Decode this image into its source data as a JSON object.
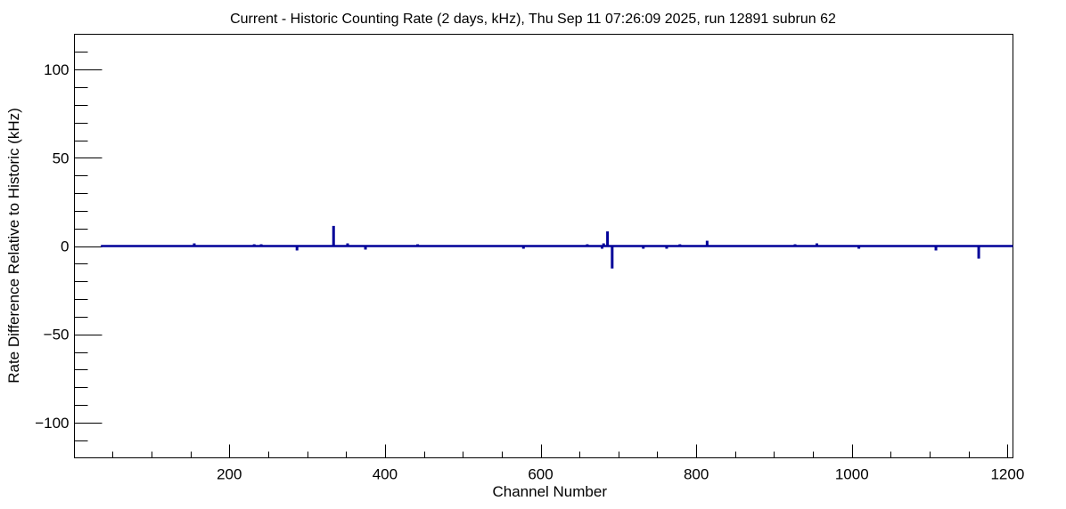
{
  "chart_data": {
    "type": "bar",
    "title": "Current - Historic Counting Rate (2 days, kHz), Thu Sep 11 07:26:09 2025, run 12891 subrun 62",
    "xlabel": "Channel Number",
    "ylabel": "Rate Difference Relative to Historic (kHz)",
    "xlim": [
      1,
      1207
    ],
    "ylim": [
      -120,
      120
    ],
    "x_major_ticks": [
      200,
      400,
      600,
      800,
      1000,
      1200
    ],
    "x_minor_step": 50,
    "y_major_ticks": [
      100,
      50,
      0,
      -50,
      -100
    ],
    "y_minor_step": 10,
    "y_tick_labels": [
      "100",
      "50",
      "0",
      "−50",
      "−100"
    ],
    "x_tick_labels": [
      "200",
      "400",
      "600",
      "800",
      "1000",
      "1200"
    ],
    "grid": false,
    "series_color": "#000099",
    "data_start_channel": 35,
    "default_value": 0,
    "bins": [
      {
        "x": 155,
        "y": 1.0
      },
      {
        "x": 232,
        "y": 0.5
      },
      {
        "x": 241,
        "y": 0.5
      },
      {
        "x": 287,
        "y": -2.0
      },
      {
        "x": 334,
        "y": 10.9
      },
      {
        "x": 352,
        "y": 1.0
      },
      {
        "x": 375,
        "y": -1.5
      },
      {
        "x": 442,
        "y": 0.5
      },
      {
        "x": 578,
        "y": -1.0
      },
      {
        "x": 660,
        "y": 0.5
      },
      {
        "x": 679,
        "y": -1.0
      },
      {
        "x": 681,
        "y": 1.0
      },
      {
        "x": 686,
        "y": 7.8
      },
      {
        "x": 692,
        "y": -12.2
      },
      {
        "x": 732,
        "y": -1.0
      },
      {
        "x": 762,
        "y": -1.0
      },
      {
        "x": 779,
        "y": 0.5
      },
      {
        "x": 814,
        "y": 2.5
      },
      {
        "x": 927,
        "y": 0.5
      },
      {
        "x": 955,
        "y": 1.0
      },
      {
        "x": 1009,
        "y": -1.0
      },
      {
        "x": 1108,
        "y": -2.0
      },
      {
        "x": 1163,
        "y": -6.6
      }
    ]
  }
}
